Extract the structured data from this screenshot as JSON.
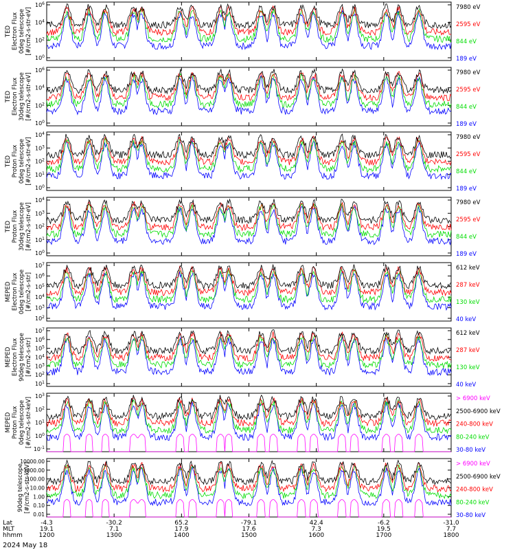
{
  "chart_data": {
    "type": "line",
    "x_range": [
      "1200",
      "1800"
    ],
    "x_ticks": [
      "1200",
      "1300",
      "1400",
      "1500",
      "1600",
      "1700",
      "1800"
    ],
    "footer": {
      "rows": [
        {
          "label": "Lat",
          "values": [
            "-4.3",
            "-30.2",
            "65.2",
            "-79.1",
            "42.4",
            "-6.2",
            "-31.0"
          ]
        },
        {
          "label": "MLT",
          "values": [
            "19.1",
            "7.1",
            "17.9",
            "17.6",
            "7.3",
            "19.5",
            "7.7"
          ]
        },
        {
          "label": "hhmm",
          "values": [
            "1200",
            "1300",
            "1400",
            "1500",
            "1600",
            "1700",
            "1800"
          ]
        }
      ],
      "date": "2024 May 18"
    },
    "panels": [
      {
        "ylabel": [
          "TED",
          "Electron Flux",
          "0deg telescope",
          "[#/cm2-s-str-eV]"
        ],
        "tick_labels": [
          "10^6",
          "10^4",
          "10^2",
          "10^0"
        ],
        "legend": [
          {
            "text": "7980 eV",
            "color": "#000000"
          },
          {
            "text": "2595 eV",
            "color": "#ff0000"
          },
          {
            "text": "844 eV",
            "color": "#00dd00"
          },
          {
            "text": "189 eV",
            "color": "#0000ff"
          }
        ]
      },
      {
        "ylabel": [
          "TED",
          "Electron Flux",
          "30deg telescope",
          "[#/cm2-s-str-eV]"
        ],
        "tick_labels": [
          "10^6",
          "10^4",
          "10^2",
          "10^0"
        ],
        "legend": [
          {
            "text": "7980 eV",
            "color": "#000000"
          },
          {
            "text": "2595 eV",
            "color": "#ff0000"
          },
          {
            "text": "844 eV",
            "color": "#00dd00"
          },
          {
            "text": "189 eV",
            "color": "#0000ff"
          }
        ]
      },
      {
        "ylabel": [
          "TED",
          "Proton Flux",
          "0deg telescope",
          "[#/cm2-s-str-eV]"
        ],
        "tick_labels": [
          "10^4",
          "10^3",
          "10^2",
          "10^1",
          "10^0"
        ],
        "legend": [
          {
            "text": "7980 eV",
            "color": "#000000"
          },
          {
            "text": "2595 eV",
            "color": "#ff0000"
          },
          {
            "text": "844 eV",
            "color": "#00dd00"
          },
          {
            "text": "189 eV",
            "color": "#0000ff"
          }
        ]
      },
      {
        "ylabel": [
          "TED",
          "Proton Flux",
          "30deg telescope",
          "[#/cm2-s-str-eV]"
        ],
        "tick_labels": [
          "10^4",
          "10^3",
          "10^2",
          "10^1",
          "10^0"
        ],
        "legend": [
          {
            "text": "7980 eV",
            "color": "#000000"
          },
          {
            "text": "2595 eV",
            "color": "#ff0000"
          },
          {
            "text": "844 eV",
            "color": "#00dd00"
          },
          {
            "text": "189 eV",
            "color": "#0000ff"
          }
        ]
      },
      {
        "ylabel": [
          "MEPED",
          "Electron Flux",
          "0deg telescope",
          "[#/cm2-s-str]"
        ],
        "tick_labels": [
          "10^7",
          "10^6",
          "10^5",
          "10^4",
          "10^3",
          "10^2"
        ],
        "legend": [
          {
            "text": "612 keV",
            "color": "#000000"
          },
          {
            "text": "287 keV",
            "color": "#ff0000"
          },
          {
            "text": "130 keV",
            "color": "#00dd00"
          },
          {
            "text": "40 keV",
            "color": "#0000ff"
          }
        ]
      },
      {
        "ylabel": [
          "MEPED",
          "Electron Flux",
          "90deg telescope",
          "[#/cm2-s-str]"
        ],
        "tick_labels": [
          "10^7",
          "10^6",
          "10^5",
          "10^4",
          "10^3",
          "10^2",
          "10^1"
        ],
        "legend": [
          {
            "text": "612 keV",
            "color": "#000000"
          },
          {
            "text": "287 keV",
            "color": "#ff0000"
          },
          {
            "text": "130 keV",
            "color": "#00dd00"
          },
          {
            "text": "40 keV",
            "color": "#0000ff"
          }
        ]
      },
      {
        "ylabel": [
          "MEPED",
          "Proton Flux",
          "0deg telescope",
          "[#/cm2-s-str-keV]"
        ],
        "tick_labels": [
          "10^3",
          "10^2",
          "10^1",
          "10^0",
          "10^-1"
        ],
        "legend": [
          {
            "text": "> 6900 keV",
            "color": "#ff00ff"
          },
          {
            "text": "2500-6900 keV",
            "color": "#000000"
          },
          {
            "text": "240-800 keV",
            "color": "#ff0000"
          },
          {
            "text": "80-240 keV",
            "color": "#00dd00"
          },
          {
            "text": "30-80 keV",
            "color": "#0000ff"
          }
        ]
      },
      {
        "ylabel": [
          "90deg telescope",
          "[#/cm2-s-str-keV]"
        ],
        "tick_labels": [
          "10000.00",
          "1000.00",
          "100.00",
          "10.00",
          "1.00",
          "0.10",
          "0.01"
        ],
        "legend": [
          {
            "text": "> 6900 keV",
            "color": "#ff00ff"
          },
          {
            "text": "2500-6900 keV",
            "color": "#000000"
          },
          {
            "text": "240-800 keV",
            "color": "#ff0000"
          },
          {
            "text": "80-240 keV",
            "color": "#00dd00"
          },
          {
            "text": "30-80 keV",
            "color": "#0000ff"
          }
        ]
      }
    ]
  }
}
